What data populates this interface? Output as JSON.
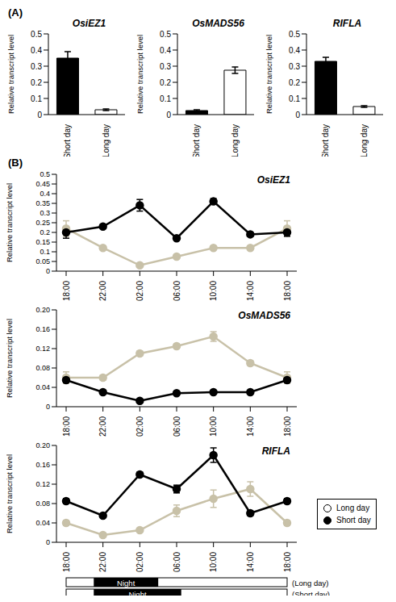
{
  "panel_labels": [
    "(A)",
    "(B)"
  ],
  "chart_data": [
    {
      "type": "bar",
      "title": "OsiEZ1",
      "categories": [
        "Short day",
        "Long day"
      ],
      "values": [
        0.35,
        0.03
      ],
      "errors": [
        0.04,
        0.005
      ],
      "colors": [
        "#000000",
        "#ffffff"
      ],
      "y_label": "Relative transcript level",
      "ylim": [
        0,
        0.5
      ],
      "yticks": [
        0,
        0.1,
        0.2,
        0.3,
        0.4,
        0.5
      ]
    },
    {
      "type": "bar",
      "title": "OsMADS56",
      "categories": [
        "Short day",
        "Long day"
      ],
      "values": [
        0.025,
        0.275
      ],
      "errors": [
        0.005,
        0.02
      ],
      "colors": [
        "#000000",
        "#ffffff"
      ],
      "y_label": "Relative transcript level",
      "ylim": [
        0,
        0.5
      ],
      "yticks": [
        0,
        0.1,
        0.2,
        0.3,
        0.4,
        0.5
      ]
    },
    {
      "type": "bar",
      "title": "RIFLA",
      "categories": [
        "Short day",
        "Long day"
      ],
      "values": [
        0.33,
        0.05
      ],
      "errors": [
        0.025,
        0.005
      ],
      "colors": [
        "#000000",
        "#ffffff"
      ],
      "y_label": "Relative transcript level",
      "ylim": [
        0,
        0.5
      ],
      "yticks": [
        0,
        0.1,
        0.2,
        0.3,
        0.4,
        0.5
      ]
    },
    {
      "type": "line",
      "title": "OsiEZ1",
      "categories": [
        "18:00",
        "22:00",
        "02:00",
        "06:00",
        "10:00",
        "14:00",
        "18:00"
      ],
      "y_label": "Relative transcript level",
      "ylim": [
        0,
        0.5
      ],
      "yticks": [
        0,
        0.05,
        0.1,
        0.15,
        0.2,
        0.25,
        0.3,
        0.35,
        0.4,
        0.45,
        0.5
      ],
      "series": [
        {
          "name": "Long day",
          "color": "#c8c1a8",
          "marker": "circle",
          "values": [
            0.22,
            0.12,
            0.03,
            0.075,
            0.12,
            0.12,
            0.22
          ],
          "errors": [
            0.04,
            0.01,
            0.005,
            0.01,
            0.01,
            0.01,
            0.04
          ]
        },
        {
          "name": "Short day",
          "color": "#000000",
          "marker": "circle",
          "values": [
            0.2,
            0.23,
            0.34,
            0.17,
            0.36,
            0.19,
            0.2
          ],
          "errors": [
            0.03,
            0.01,
            0.03,
            0.01,
            0.015,
            0.01,
            0.02
          ]
        }
      ]
    },
    {
      "type": "line",
      "title": "OsMADS56",
      "categories": [
        "18:00",
        "22:00",
        "02:00",
        "06:00",
        "10:00",
        "14:00",
        "18:00"
      ],
      "y_label": "Relative transcript level",
      "ylim": [
        0,
        0.2
      ],
      "yticks": [
        0,
        0.04,
        0.08,
        0.12,
        0.16,
        {
          "value": 0.2,
          "label": "0.20"
        }
      ],
      "series": [
        {
          "name": "Long day",
          "color": "#c8c1a8",
          "marker": "circle",
          "values": [
            0.06,
            0.06,
            0.11,
            0.125,
            0.145,
            0.09,
            0.06
          ],
          "errors": [
            0.012,
            0.005,
            0.005,
            0.005,
            0.01,
            0.005,
            0.012
          ]
        },
        {
          "name": "Short day",
          "color": "#000000",
          "marker": "circle",
          "values": [
            0.055,
            0.03,
            0.012,
            0.028,
            0.03,
            0.03,
            0.055
          ],
          "errors": [
            0.005,
            0.003,
            0.003,
            0.003,
            0.003,
            0.003,
            0.005
          ]
        }
      ]
    },
    {
      "type": "line",
      "title": "RIFLA",
      "categories": [
        "18:00",
        "22:00",
        "02:00",
        "06:00",
        "10:00",
        "14:00",
        "18:00"
      ],
      "y_label": "Relative transcript level",
      "ylim": [
        0,
        0.2
      ],
      "yticks": [
        0,
        0.04,
        0.08,
        0.12,
        0.16,
        {
          "value": 0.2,
          "label": "0.20"
        }
      ],
      "series": [
        {
          "name": "Long day",
          "color": "#c8c1a8",
          "marker": "circle",
          "values": [
            0.04,
            0.015,
            0.025,
            0.065,
            0.09,
            0.11,
            0.04
          ],
          "errors": [
            0.005,
            0.003,
            0.003,
            0.012,
            0.018,
            0.015,
            0.005
          ]
        },
        {
          "name": "Short day",
          "color": "#000000",
          "marker": "circle",
          "values": [
            0.085,
            0.055,
            0.14,
            0.11,
            0.18,
            0.06,
            0.085
          ],
          "errors": [
            0.005,
            0.003,
            0.005,
            0.008,
            0.015,
            0.005,
            0.005
          ]
        }
      ]
    }
  ],
  "legend": {
    "position": "bottom right",
    "entries": [
      {
        "label": "Long day",
        "marker": "open_circle",
        "color": "#000000"
      },
      {
        "label": "Short day",
        "marker": "filled_circle",
        "color": "#000000"
      }
    ]
  },
  "photoperiod": {
    "start": 18,
    "bars": [
      {
        "label": "(Long day)",
        "night_label": "Night",
        "night_start": 21,
        "night_end": 4
      },
      {
        "label": "(Short day)",
        "night_label": "Night",
        "night_start": 21,
        "night_end": 6.5
      }
    ]
  }
}
